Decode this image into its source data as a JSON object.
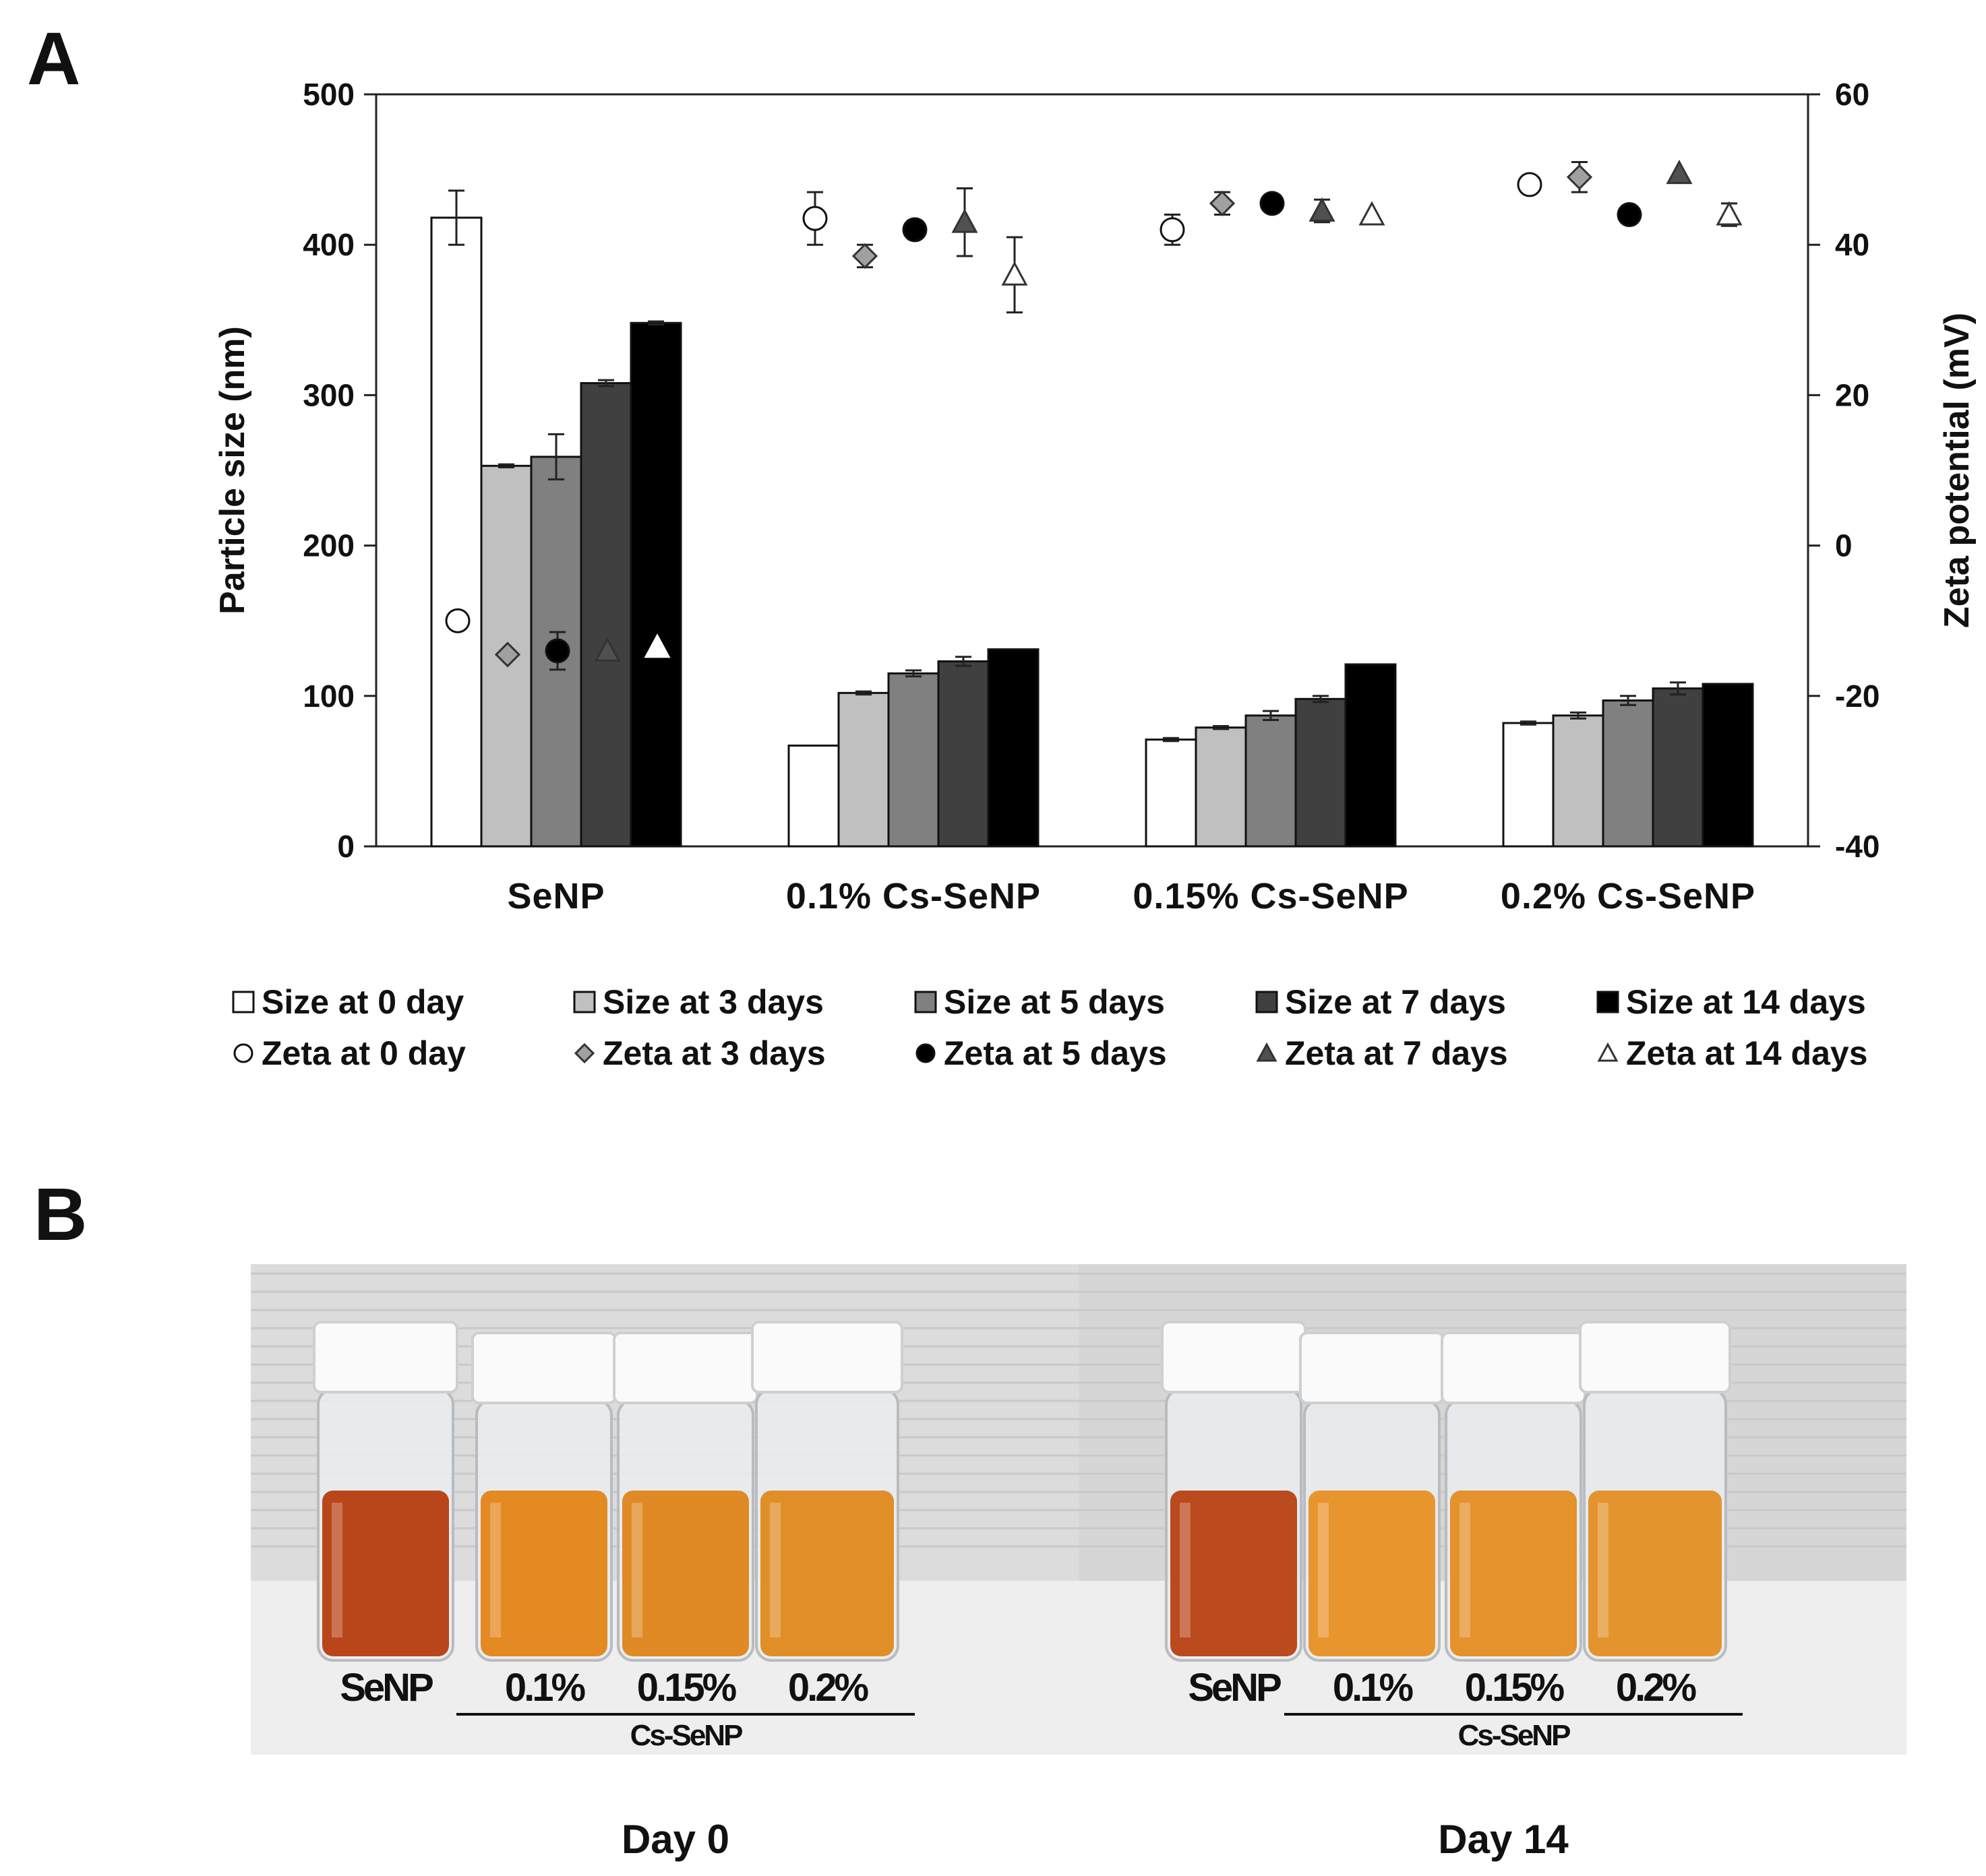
{
  "panel_a": {
    "letter": "A"
  },
  "panel_b": {
    "letter": "B"
  },
  "chart_data": {
    "type": "bar",
    "categories": [
      "SeNP",
      "0.1% Cs-SeNP",
      "0.15% Cs-SeNP",
      "0.2% Cs-SeNP"
    ],
    "ylabel": "Particle size (nm)",
    "ylim": [
      0,
      500
    ],
    "yticks": [
      "0",
      "100",
      "200",
      "300",
      "400",
      "500"
    ],
    "y2label": "Zeta potential (mV)",
    "y2lim": [
      -40,
      60
    ],
    "y2ticks": [
      "-40",
      "-20",
      "0",
      "20",
      "40",
      "60"
    ],
    "grid": false,
    "legend_position": "bottom",
    "series": [
      {
        "name": "Size at 0 day",
        "kind": "bar",
        "axis": "left",
        "fill": "#ffffff",
        "values": [
          418,
          67,
          71,
          82
        ],
        "errors": [
          18,
          0,
          1,
          1
        ]
      },
      {
        "name": "Size at 3 days",
        "kind": "bar",
        "axis": "left",
        "fill": "#c0c0c0",
        "values": [
          253,
          102,
          79,
          87
        ],
        "errors": [
          1,
          1,
          1,
          2
        ]
      },
      {
        "name": "Size at 5 days",
        "kind": "bar",
        "axis": "left",
        "fill": "#808080",
        "values": [
          259,
          115,
          87,
          97
        ],
        "errors": [
          15,
          2,
          3,
          3
        ]
      },
      {
        "name": "Size at 7 days",
        "kind": "bar",
        "axis": "left",
        "fill": "#404040",
        "values": [
          308,
          123,
          98,
          105
        ],
        "errors": [
          2,
          3,
          2,
          4
        ]
      },
      {
        "name": "Size at 14 days",
        "kind": "bar",
        "axis": "left",
        "fill": "#000000",
        "values": [
          348,
          131,
          121,
          108
        ],
        "errors": [
          1,
          0,
          0,
          0
        ]
      },
      {
        "name": "Zeta at 0 day",
        "kind": "marker",
        "marker": "circle",
        "marker_fill": "#ffffff",
        "axis": "right",
        "values": [
          -10,
          43.5,
          42,
          48
        ],
        "errors": [
          0,
          3.5,
          2,
          0
        ]
      },
      {
        "name": "Zeta at 3 days",
        "kind": "marker",
        "marker": "diamond",
        "marker_fill": "#a0a0a0",
        "axis": "right",
        "values": [
          -14.5,
          38.5,
          45.5,
          49
        ],
        "errors": [
          0,
          1.5,
          1.5,
          2
        ]
      },
      {
        "name": "Zeta at 5 days",
        "kind": "marker",
        "marker": "circle",
        "marker_fill": "#000000",
        "axis": "right",
        "values": [
          -14,
          42,
          45.5,
          44
        ],
        "errors": [
          2.5,
          0,
          1,
          0
        ]
      },
      {
        "name": "Zeta at 7 days",
        "kind": "marker",
        "marker": "triangle",
        "marker_fill": "#505050",
        "axis": "right",
        "values": [
          -14,
          43,
          44.5,
          49.5
        ],
        "errors": [
          0,
          4.5,
          1.5,
          0
        ]
      },
      {
        "name": "Zeta at 14 days",
        "kind": "marker",
        "marker": "triangle",
        "marker_fill": "#ffffff",
        "axis": "right",
        "values": [
          -13.5,
          36,
          44,
          44
        ],
        "errors": [
          0,
          5,
          0,
          1.5
        ]
      }
    ]
  },
  "photos": [
    {
      "vial_labels": [
        "SeNP",
        "0.1%",
        "0.15%",
        "0.2%"
      ],
      "group_label": "Cs-SeNP",
      "day_label": "Day 0",
      "background": "#dcdcdc",
      "liquid_colors": [
        "#b9461a",
        "#e38a22",
        "#df8a24",
        "#e08f28"
      ]
    },
    {
      "vial_labels": [
        "SeNP",
        "0.1%",
        "0.15%",
        "0.2%"
      ],
      "group_label": "Cs-SeNP",
      "day_label": "Day 14",
      "background": "#d6d6d6",
      "liquid_colors": [
        "#bb4a1e",
        "#e8952e",
        "#e3922c",
        "#e4942e"
      ]
    }
  ]
}
